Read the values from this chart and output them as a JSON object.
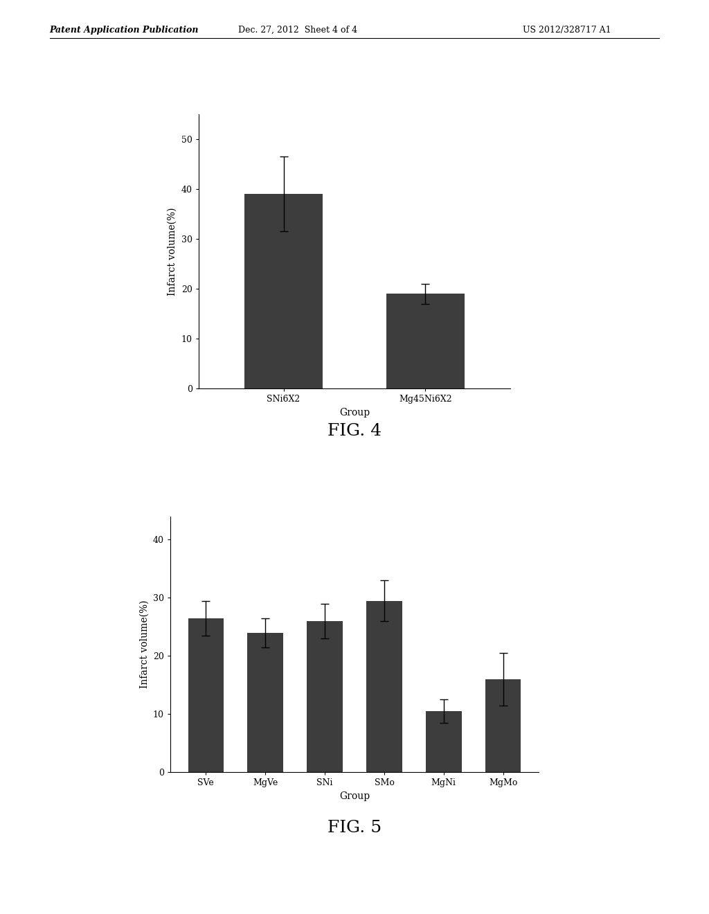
{
  "header_left": "Patent Application Publication",
  "header_mid": "Dec. 27, 2012  Sheet 4 of 4",
  "header_right": "US 2012/328717 A1",
  "fig4": {
    "categories": [
      "SNi6X2",
      "Mg45Ni6X2"
    ],
    "values": [
      39.0,
      19.0
    ],
    "errors": [
      7.5,
      2.0
    ],
    "ylabel": "Infarct volume(%)",
    "xlabel": "Group",
    "ylim": [
      0,
      55
    ],
    "yticks": [
      0,
      10,
      20,
      30,
      40,
      50
    ],
    "title": "FIG. 4",
    "bar_color": "#3d3d3d",
    "bar_width": 0.55
  },
  "fig5": {
    "categories": [
      "SVe",
      "MgVe",
      "SNi",
      "SMo",
      "MgNi",
      "MgMo"
    ],
    "values": [
      26.5,
      24.0,
      26.0,
      29.5,
      10.5,
      16.0
    ],
    "errors": [
      3.0,
      2.5,
      3.0,
      3.5,
      2.0,
      4.5
    ],
    "ylabel": "Infarct volume(%)",
    "xlabel": "Group",
    "ylim": [
      0,
      44
    ],
    "yticks": [
      0,
      10,
      20,
      30,
      40
    ],
    "title": "FIG. 5",
    "bar_color": "#3d3d3d",
    "bar_width": 0.6
  },
  "background_color": "#ffffff",
  "font_color": "#000000",
  "fig_title_fontsize": 18,
  "axis_label_fontsize": 10,
  "tick_fontsize": 9,
  "header_fontsize": 9
}
